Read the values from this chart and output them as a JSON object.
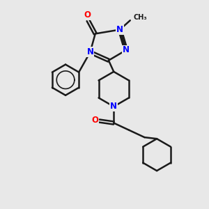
{
  "background_color": "#e8e8e8",
  "bond_color": "#1a1a1a",
  "N_color": "#0000ff",
  "O_color": "#ff0000",
  "C_color": "#1a1a1a",
  "bond_width": 1.8,
  "figsize": [
    3.0,
    3.0
  ],
  "dpi": 100,
  "xlim": [
    0,
    10
  ],
  "ylim": [
    0,
    10
  ]
}
